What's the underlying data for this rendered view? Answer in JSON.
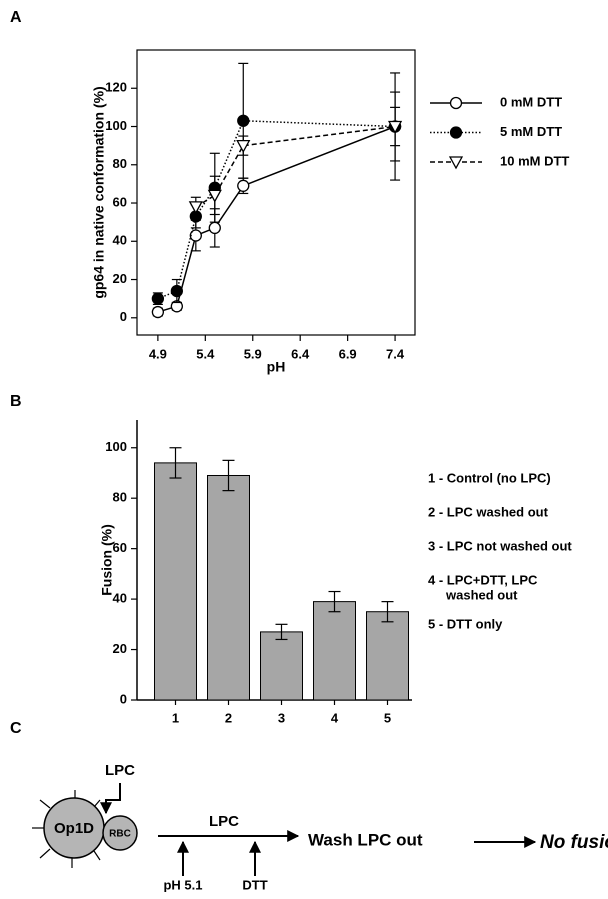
{
  "chart_data": [
    {
      "type": "line",
      "panel": "A",
      "y_label": "gp64 in native conformation (%)",
      "x_label": "pH",
      "x": [
        4.9,
        5.1,
        5.3,
        5.5,
        5.8,
        7.4
      ],
      "xlim": [
        4.68,
        7.61
      ],
      "xticks": [
        4.9,
        5.4,
        5.9,
        6.4,
        6.9,
        7.4
      ],
      "ylim": [
        -9,
        140
      ],
      "yticks": [
        0,
        20,
        40,
        60,
        80,
        100,
        120
      ],
      "frame": true,
      "series": [
        {
          "name": "0 mM DTT",
          "color": "#000000",
          "dash": "solid",
          "marker": "open-circle",
          "values": [
            3,
            6,
            43,
            47,
            69,
            100
          ],
          "errors": [
            2,
            2,
            8,
            10,
            4,
            28
          ]
        },
        {
          "name": "5 mM DTT",
          "color": "#000000",
          "dash": "dotted",
          "marker": "filled-circle",
          "values": [
            10,
            14,
            53,
            68,
            103,
            100
          ],
          "errors": [
            3,
            6,
            6,
            18,
            30,
            10
          ]
        },
        {
          "name": "10 mM DTT",
          "color": "#000000",
          "dash": "dashed",
          "marker": "open-triangle-down",
          "values": [
            null,
            null,
            58,
            64,
            90,
            100
          ],
          "errors": [
            null,
            null,
            5,
            10,
            5,
            18
          ]
        }
      ]
    },
    {
      "type": "bar",
      "panel": "B",
      "y_label": "Fusion (%)",
      "categories": [
        "1",
        "2",
        "3",
        "4",
        "5"
      ],
      "values": [
        94,
        89,
        27,
        39,
        35
      ],
      "errors": [
        6,
        6,
        3,
        4,
        4
      ],
      "color": "#a6a6a6",
      "ylim": [
        0,
        111
      ],
      "yticks": [
        0,
        20,
        40,
        60,
        80,
        100
      ],
      "frame": false,
      "notes": [
        [
          "1 - Control (no LPC)"
        ],
        [
          "2 - LPC washed out"
        ],
        [
          "3 - LPC not washed out"
        ],
        [
          "4 -  LPC+DTT, LPC",
          "washed out"
        ],
        [
          "5 - DTT only"
        ]
      ]
    }
  ],
  "diagram": {
    "panel": "C",
    "cell": "Op1D",
    "rbc": "RBC",
    "lpc_added": "LPC",
    "arrow_label": "LPC",
    "step1": "pH 5.1",
    "step2": "DTT",
    "wash": "Wash LPC out",
    "result": "No fusion"
  }
}
